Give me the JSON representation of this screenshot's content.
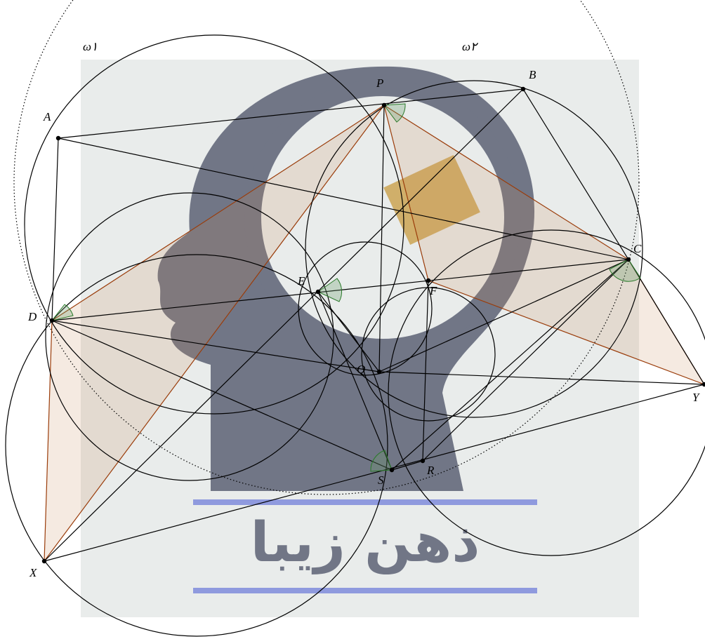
{
  "points": [
    "A",
    "B",
    "C",
    "D",
    "E",
    "F",
    "P",
    "Q",
    "R",
    "S",
    "X",
    "Y"
  ],
  "circle_labels": [
    "ω۱",
    "ω۲"
  ],
  "watermark": "ذهن زیبا"
}
